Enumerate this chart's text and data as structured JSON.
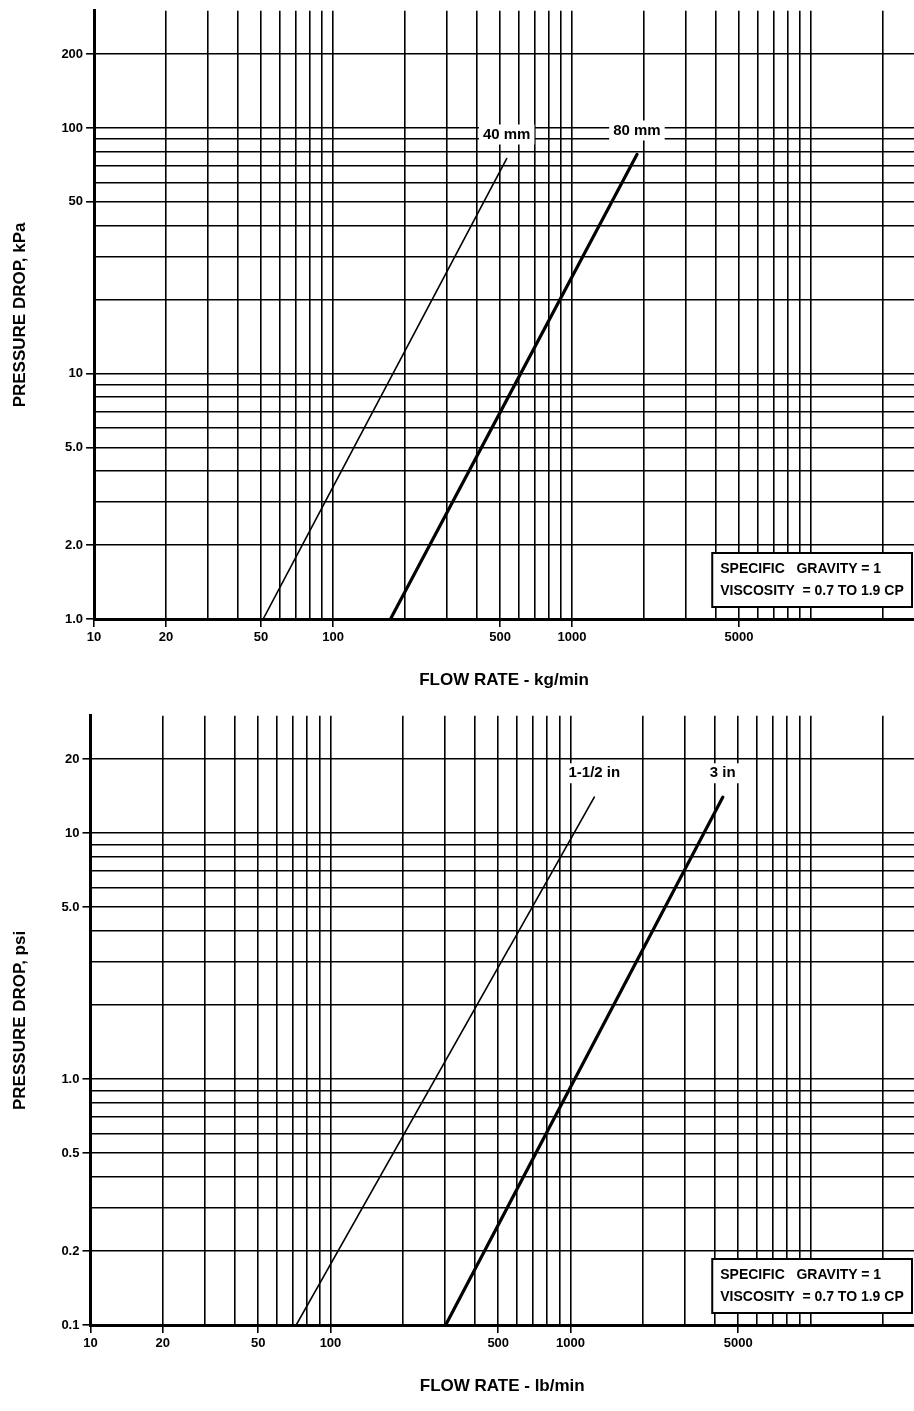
{
  "chart_data": [
    {
      "type": "line",
      "xlabel": "FLOW RATE - kg/min",
      "ylabel": "PRESSURE DROP, kPa",
      "log": "xy",
      "grid": true,
      "marker": "none",
      "xlim": [
        10,
        27000
      ],
      "ylim": [
        1,
        300
      ],
      "xticks": [
        10,
        20,
        {
          "value": 30,
          "label": null
        },
        {
          "value": 40,
          "label": null
        },
        50,
        {
          "value": 60,
          "label": null
        },
        {
          "value": 70,
          "label": null
        },
        {
          "value": 80,
          "label": null
        },
        {
          "value": 90,
          "label": null
        },
        100,
        {
          "value": 200,
          "label": null
        },
        {
          "value": 300,
          "label": null
        },
        {
          "value": 400,
          "label": null
        },
        500,
        {
          "value": 600,
          "label": null
        },
        {
          "value": 700,
          "label": null
        },
        {
          "value": 800,
          "label": null
        },
        {
          "value": 900,
          "label": null
        },
        1000,
        {
          "value": 2000,
          "label": null
        },
        {
          "value": 3000,
          "label": null
        },
        {
          "value": 4000,
          "label": null
        },
        5000,
        {
          "value": 6000,
          "label": null
        },
        {
          "value": 7000,
          "label": null
        },
        {
          "value": 8000,
          "label": null
        },
        {
          "value": 9000,
          "label": null
        },
        {
          "value": 10000,
          "label": null
        },
        {
          "value": 20000,
          "label": null
        }
      ],
      "yticks": [
        {
          "value": 1,
          "label": "1.0"
        },
        {
          "value": 2,
          "label": "2.0"
        },
        {
          "value": 3,
          "label": null
        },
        {
          "value": 4,
          "label": null
        },
        {
          "value": 5,
          "label": "5.0"
        },
        {
          "value": 6,
          "label": null
        },
        {
          "value": 7,
          "label": null
        },
        {
          "value": 8,
          "label": null
        },
        {
          "value": 9,
          "label": null
        },
        10,
        {
          "value": 20,
          "label": null
        },
        {
          "value": 30,
          "label": null
        },
        {
          "value": 40,
          "label": null
        },
        50,
        {
          "value": 60,
          "label": null
        },
        {
          "value": 70,
          "label": null
        },
        {
          "value": 80,
          "label": null
        },
        {
          "value": 90,
          "label": null
        },
        100,
        200
      ],
      "series": [
        {
          "name": "40 mm",
          "color": "#000000",
          "x": [
            51,
            533
          ],
          "values": [
            1,
            75
          ]
        },
        {
          "name": "80 mm",
          "color": "#000000",
          "x": [
            174,
            1870
          ],
          "values": [
            1,
            78
          ]
        }
      ],
      "annotations": [
        "SPECIFIC   GRAVITY = 1",
        "VISCOSITY  = 0.7 TO 1.9 CP"
      ]
    },
    {
      "type": "line",
      "xlabel": "FLOW RATE - lb/min",
      "ylabel": "PRESSURE DROP, psi",
      "log": "xy",
      "grid": true,
      "marker": "none",
      "xlim": [
        10,
        27000
      ],
      "ylim": [
        0.1,
        30
      ],
      "xticks": [
        10,
        20,
        {
          "value": 30,
          "label": null
        },
        {
          "value": 40,
          "label": null
        },
        50,
        {
          "value": 60,
          "label": null
        },
        {
          "value": 70,
          "label": null
        },
        {
          "value": 80,
          "label": null
        },
        {
          "value": 90,
          "label": null
        },
        100,
        {
          "value": 200,
          "label": null
        },
        {
          "value": 300,
          "label": null
        },
        {
          "value": 400,
          "label": null
        },
        500,
        {
          "value": 600,
          "label": null
        },
        {
          "value": 700,
          "label": null
        },
        {
          "value": 800,
          "label": null
        },
        {
          "value": 900,
          "label": null
        },
        1000,
        {
          "value": 2000,
          "label": null
        },
        {
          "value": 3000,
          "label": null
        },
        {
          "value": 4000,
          "label": null
        },
        5000,
        {
          "value": 6000,
          "label": null
        },
        {
          "value": 7000,
          "label": null
        },
        {
          "value": 8000,
          "label": null
        },
        {
          "value": 9000,
          "label": null
        },
        {
          "value": 10000,
          "label": null
        },
        {
          "value": 20000,
          "label": null
        }
      ],
      "yticks": [
        0.1,
        0.2,
        {
          "value": 0.3,
          "label": null
        },
        {
          "value": 0.4,
          "label": null
        },
        0.5,
        {
          "value": 0.6,
          "label": null
        },
        {
          "value": 0.7,
          "label": null
        },
        {
          "value": 0.8,
          "label": null
        },
        {
          "value": 0.9,
          "label": null
        },
        {
          "value": 1,
          "label": "1.0"
        },
        {
          "value": 2,
          "label": null
        },
        {
          "value": 3,
          "label": null
        },
        {
          "value": 4,
          "label": null
        },
        {
          "value": 5,
          "label": "5.0"
        },
        {
          "value": 6,
          "label": null
        },
        {
          "value": 7,
          "label": null
        },
        {
          "value": 8,
          "label": null
        },
        {
          "value": 9,
          "label": null
        },
        10,
        20
      ],
      "series": [
        {
          "name": "1-1/2 in",
          "color": "#000000",
          "x": [
            72,
            1257
          ],
          "values": [
            0.1,
            14
          ]
        },
        {
          "name": "3 in",
          "color": "#000000",
          "x": [
            302,
            4310
          ],
          "values": [
            0.1,
            14
          ]
        }
      ],
      "annotations": [
        "SPECIFIC   GRAVITY = 1",
        "VISCOSITY  = 0.7 TO 1.9 CP"
      ]
    }
  ]
}
